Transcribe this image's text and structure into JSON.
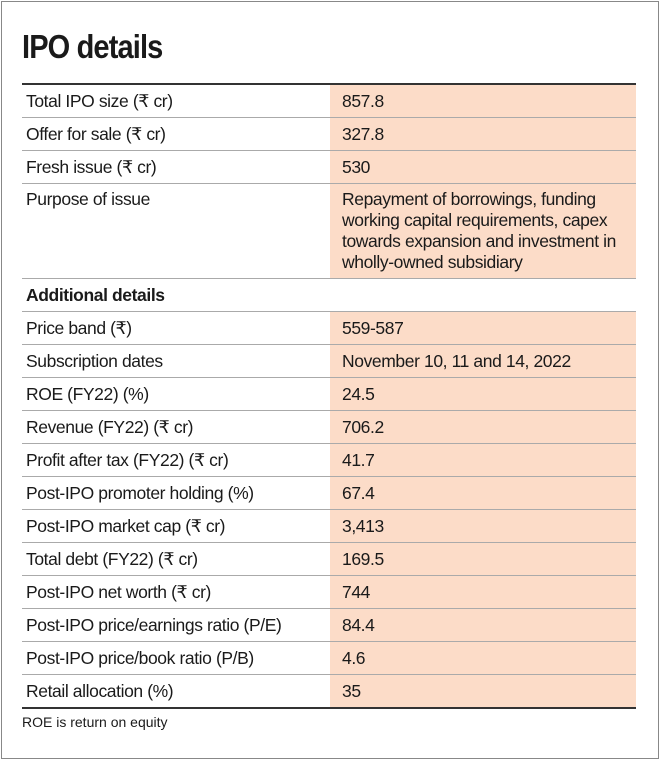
{
  "title": "IPO details",
  "table": {
    "rows": [
      [
        "Total IPO size (₹ cr)",
        "857.8"
      ],
      [
        "Offer for sale (₹ cr)",
        "327.8"
      ],
      [
        "Fresh issue (₹ cr)",
        "530"
      ],
      [
        "Purpose of issue",
        "Repayment of borrowings, funding working capital requirements, capex towards expansion and investment in wholly-owned subsidiary"
      ]
    ],
    "section": "Additional details",
    "rows2": [
      [
        "Price band (₹)",
        "559-587"
      ],
      [
        "Subscription dates",
        "November 10, 11 and 14, 2022"
      ],
      [
        "ROE (FY22) (%)",
        "24.5"
      ],
      [
        "Revenue (FY22) (₹ cr)",
        "706.2"
      ],
      [
        "Profit after tax (FY22) (₹ cr)",
        "41.7"
      ],
      [
        "Post-IPO promoter holding (%)",
        "67.4"
      ],
      [
        "Post-IPO market cap (₹ cr)",
        "3,413"
      ],
      [
        "Total debt (FY22) (₹ cr)",
        "169.5"
      ],
      [
        "Post-IPO net worth (₹ cr)",
        "744"
      ],
      [
        "Post-IPO price/earnings ratio (P/E)",
        "84.4"
      ],
      [
        "Post-IPO price/book ratio (P/B)",
        "4.6"
      ],
      [
        "Retail allocation (%)",
        "35"
      ]
    ]
  },
  "footnote": "ROE is return on equity"
}
